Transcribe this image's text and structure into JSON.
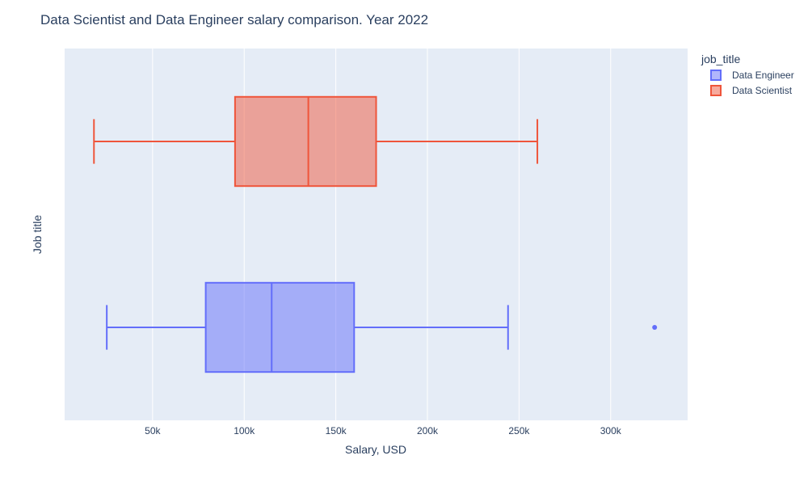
{
  "chart_data": {
    "type": "box",
    "orientation": "horizontal",
    "title": "Data Scientist and Data Engineer salary comparison. Year 2022",
    "xlabel": "Salary, USD",
    "ylabel": "Job title",
    "xlim": [
      2000,
      342000
    ],
    "x_ticks": [
      {
        "value": 50000,
        "label": "50k"
      },
      {
        "value": 100000,
        "label": "100k"
      },
      {
        "value": 150000,
        "label": "150k"
      },
      {
        "value": 200000,
        "label": "200k"
      },
      {
        "value": 250000,
        "label": "250k"
      },
      {
        "value": 300000,
        "label": "300k"
      }
    ],
    "grid": true,
    "legend": {
      "title": "job_title",
      "position": "top-right"
    },
    "series": [
      {
        "name": "Data Engineer",
        "color": "#636efa",
        "fill": "rgba(99,110,250,0.5)",
        "whisker_low": 25000,
        "q1": 79000,
        "median": 115000,
        "q3": 160000,
        "whisker_high": 244000,
        "outliers": [
          324000
        ]
      },
      {
        "name": "Data Scientist",
        "color": "#ef553b",
        "fill": "rgba(239,85,59,0.5)",
        "whisker_low": 18000,
        "q1": 95000,
        "median": 135000,
        "q3": 172000,
        "whisker_high": 260000,
        "outliers": []
      }
    ]
  }
}
